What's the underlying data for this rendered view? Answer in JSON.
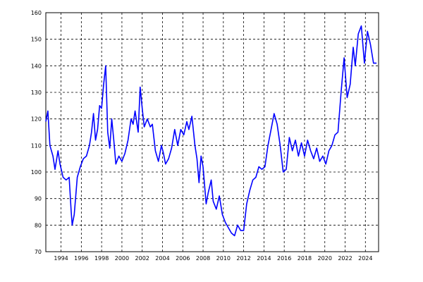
{
  "chart_data": {
    "type": "line",
    "x": [
      1992.5,
      1992.7,
      1992.9,
      1993.2,
      1993.4,
      1993.7,
      1993.9,
      1994.2,
      1994.5,
      1994.8,
      1995.0,
      1995.1,
      1995.3,
      1995.6,
      1995.9,
      1996.2,
      1996.5,
      1996.8,
      1997.0,
      1997.2,
      1997.4,
      1997.6,
      1997.8,
      1998.0,
      1998.2,
      1998.4,
      1998.6,
      1998.8,
      1999.0,
      1999.2,
      1999.4,
      1999.7,
      2000.0,
      2000.3,
      2000.6,
      2000.9,
      2001.1,
      2001.3,
      2001.6,
      2001.8,
      2002.0,
      2002.2,
      2002.5,
      2002.8,
      2003.0,
      2003.3,
      2003.6,
      2003.9,
      2004.1,
      2004.3,
      2004.6,
      2004.9,
      2005.2,
      2005.5,
      2005.8,
      2006.1,
      2006.4,
      2006.6,
      2006.9,
      2007.2,
      2007.4,
      2007.6,
      2007.8,
      2008.0,
      2008.3,
      2008.5,
      2008.8,
      2009.0,
      2009.3,
      2009.6,
      2009.9,
      2010.2,
      2010.5,
      2010.8,
      2011.1,
      2011.4,
      2011.7,
      2012.0,
      2012.3,
      2012.6,
      2012.9,
      2013.2,
      2013.5,
      2013.8,
      2014.1,
      2014.4,
      2014.7,
      2015.0,
      2015.3,
      2015.6,
      2015.9,
      2016.2,
      2016.5,
      2016.8,
      2017.1,
      2017.4,
      2017.7,
      2018.0,
      2018.3,
      2018.6,
      2018.9,
      2019.2,
      2019.5,
      2019.8,
      2020.1,
      2020.4,
      2020.7,
      2021.0,
      2021.3,
      2021.6,
      2021.9,
      2022.2,
      2022.5,
      2022.8,
      2023.0,
      2023.3,
      2023.6,
      2023.9,
      2024.2,
      2024.5,
      2024.8,
      2025.1
    ],
    "series": [
      {
        "name": null,
        "color": "#0000ff",
        "values": [
          119,
          123,
          110,
          106,
          101,
          108,
          103,
          98,
          97,
          98,
          85,
          80,
          84,
          98,
          102,
          105,
          106,
          110,
          115,
          122,
          112,
          116,
          125,
          124,
          133,
          140,
          115,
          109,
          120,
          112,
          103,
          106,
          104,
          107,
          112,
          120,
          118,
          123,
          115,
          132,
          124,
          117,
          120,
          117,
          118,
          108,
          104,
          110,
          107,
          103,
          105,
          109,
          116,
          110,
          116,
          114,
          119,
          116,
          121,
          110,
          105,
          96,
          106,
          102,
          88,
          92,
          97,
          89,
          86,
          91,
          84,
          81,
          79,
          77,
          76,
          80,
          78,
          78,
          88,
          93,
          97,
          98,
          102,
          101,
          102,
          110,
          116,
          122,
          118,
          110,
          100,
          101,
          113,
          108,
          112,
          106,
          111,
          106,
          112,
          108,
          105,
          109,
          104,
          106,
          103,
          108,
          110,
          114,
          115,
          130,
          143,
          128,
          133,
          147,
          140,
          152,
          155,
          141,
          153,
          148,
          141,
          141
        ]
      }
    ],
    "xlim": [
      1992.5,
      2025.3
    ],
    "xticks": [
      1994,
      1996,
      1998,
      2000,
      2002,
      2004,
      2006,
      2008,
      2010,
      2012,
      2014,
      2016,
      2018,
      2020,
      2022,
      2024
    ],
    "ylim": [
      70,
      160
    ],
    "yticks": [
      70,
      80,
      90,
      100,
      110,
      120,
      130,
      140,
      150,
      160
    ],
    "grid": true
  }
}
